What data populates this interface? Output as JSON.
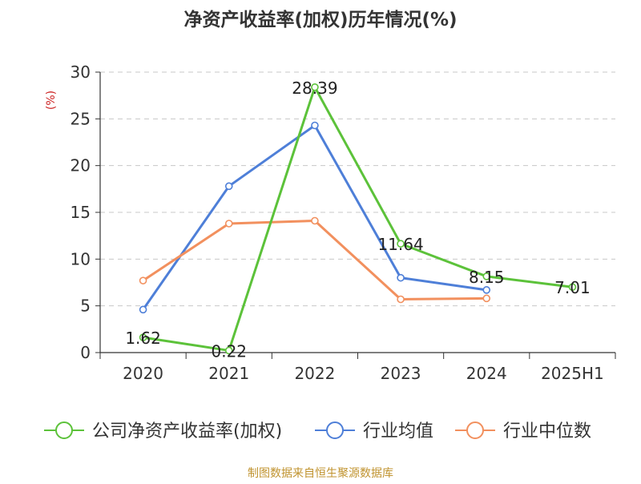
{
  "chart_data": {
    "type": "line",
    "title": "净资产收益率(加权)历年情况(%)",
    "ylabel": "(%)",
    "xlabel": "",
    "categories": [
      "2020",
      "2021",
      "2022",
      "2023",
      "2024",
      "2025H1"
    ],
    "ylim": [
      0,
      30
    ],
    "yticks": [
      0,
      5,
      10,
      15,
      20,
      25,
      30
    ],
    "grid": true,
    "legend_position": "bottom",
    "series": [
      {
        "name": "公司净资产收益率(加权)",
        "color": "#5cc23a",
        "values": [
          1.62,
          0.22,
          28.39,
          11.64,
          8.15,
          7.01
        ],
        "labels": [
          "1.62",
          "0.22",
          "28.39",
          "11.64",
          "8.15",
          "7.01"
        ]
      },
      {
        "name": "行业均值",
        "color": "#4e7fd8",
        "values": [
          4.6,
          17.8,
          24.3,
          8.0,
          6.7,
          null
        ]
      },
      {
        "name": "行业中位数",
        "color": "#f2905e",
        "values": [
          7.7,
          13.8,
          14.1,
          5.7,
          5.8,
          null
        ]
      }
    ],
    "source": "制图数据来自恒生聚源数据库"
  }
}
